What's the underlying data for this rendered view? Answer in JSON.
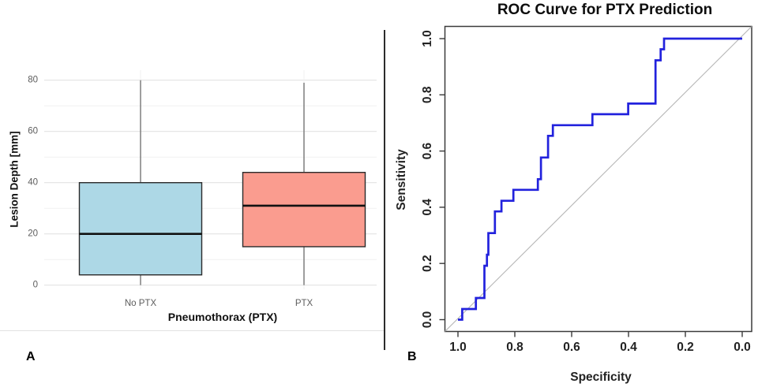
{
  "panel_labels": {
    "a": "A",
    "b": "B"
  },
  "colors": {
    "no_ptx_box_fill": "#ADD8E6",
    "ptx_box_fill": "#FA9C8F",
    "box_border": "#2b2b2b",
    "median_line": "#111111",
    "whisker": "#757575",
    "grid_major": "#e3e3e3",
    "grid_minor": "#f1f1f1",
    "roc_curve": "#2222DD",
    "roc_diagonal": "#b5b5b5",
    "axis_line": "#3a3a3a",
    "tick_label_gray": "#5c5c5c",
    "tick_label_dark": "#222222"
  },
  "chart_data": [
    {
      "id": "lesion-depth-boxplot",
      "type": "boxplot",
      "title": "",
      "xlabel": "Pneumothorax (PTX)",
      "ylabel": "Lesion Depth [mm]",
      "ylim": [
        0,
        80
      ],
      "yticks": [
        0,
        20,
        40,
        60,
        80
      ],
      "minor_gridlines": [
        10,
        30,
        50,
        70
      ],
      "grid": true,
      "categories": [
        "No PTX",
        "PTX"
      ],
      "series": [
        {
          "category": "No PTX",
          "min": 0,
          "q1": 4,
          "median": 20,
          "q3": 40,
          "max": 80,
          "fill": "#ADD8E6"
        },
        {
          "category": "PTX",
          "min": 0,
          "q1": 15,
          "median": 31,
          "q3": 44,
          "max": 79,
          "fill": "#FA9C8F"
        }
      ]
    },
    {
      "id": "roc-curve",
      "type": "line",
      "title": "ROC Curve for PTX Prediction",
      "xlabel": "Specificity",
      "ylabel": "Sensitivity",
      "x_axis_reversed": true,
      "xlim": [
        1.0,
        0.0
      ],
      "ylim": [
        0.0,
        1.0
      ],
      "xticks": [
        1.0,
        0.8,
        0.6,
        0.4,
        0.2,
        0.0
      ],
      "yticks": [
        0.0,
        0.2,
        0.4,
        0.6,
        0.8,
        1.0
      ],
      "grid": false,
      "diagonal_reference": true,
      "series": [
        {
          "name": "ROC",
          "points_spec_sens": [
            [
              1.0,
              0.0
            ],
            [
              0.985,
              0.0
            ],
            [
              0.985,
              0.038
            ],
            [
              0.937,
              0.038
            ],
            [
              0.937,
              0.077
            ],
            [
              0.907,
              0.077
            ],
            [
              0.907,
              0.192
            ],
            [
              0.898,
              0.192
            ],
            [
              0.898,
              0.231
            ],
            [
              0.893,
              0.231
            ],
            [
              0.893,
              0.308
            ],
            [
              0.87,
              0.308
            ],
            [
              0.87,
              0.385
            ],
            [
              0.847,
              0.385
            ],
            [
              0.847,
              0.423
            ],
            [
              0.805,
              0.423
            ],
            [
              0.805,
              0.462
            ],
            [
              0.719,
              0.462
            ],
            [
              0.719,
              0.5
            ],
            [
              0.708,
              0.5
            ],
            [
              0.708,
              0.577
            ],
            [
              0.683,
              0.577
            ],
            [
              0.683,
              0.654
            ],
            [
              0.666,
              0.654
            ],
            [
              0.666,
              0.692
            ],
            [
              0.527,
              0.692
            ],
            [
              0.527,
              0.731
            ],
            [
              0.401,
              0.731
            ],
            [
              0.401,
              0.769
            ],
            [
              0.305,
              0.769
            ],
            [
              0.305,
              0.923
            ],
            [
              0.287,
              0.923
            ],
            [
              0.287,
              0.962
            ],
            [
              0.275,
              0.962
            ],
            [
              0.275,
              1.0
            ],
            [
              0.0,
              1.0
            ]
          ]
        }
      ]
    }
  ]
}
